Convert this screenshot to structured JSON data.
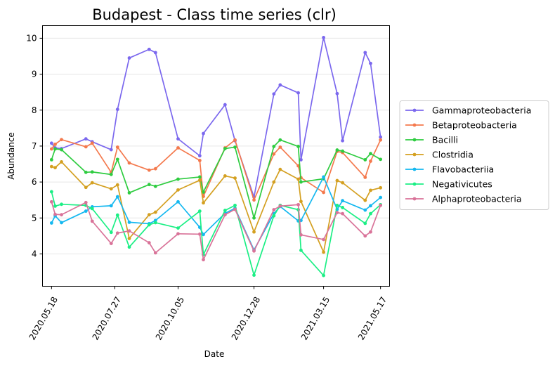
{
  "chart_data": {
    "type": "line",
    "title": "Budapest - Class time series (clr)",
    "xlabel": "Date",
    "ylabel": "Abundance",
    "ylim": [
      3.1,
      10.35
    ],
    "xlim": [
      "2020-05-08",
      "2021-05-27"
    ],
    "grid": "horizontal",
    "legend_position": "right",
    "x_ticks": [
      "2020.05.18",
      "2020.07.27",
      "2020.10.05",
      "2020.12.28",
      "2021.03.15",
      "2021.05.17"
    ],
    "y_ticks": [
      4,
      5,
      6,
      7,
      8,
      9,
      10
    ],
    "x": [
      "2020-05-18",
      "2020-05-22",
      "2020-05-29",
      "2020-06-25",
      "2020-07-02",
      "2020-07-23",
      "2020-07-30",
      "2020-08-12",
      "2020-09-03",
      "2020-09-10",
      "2020-10-05",
      "2020-10-29",
      "2020-11-02",
      "2020-11-26",
      "2020-12-07",
      "2020-12-28",
      "2021-01-19",
      "2021-01-26",
      "2021-02-15",
      "2021-02-18",
      "2021-03-15",
      "2021-03-30",
      "2021-04-05",
      "2021-04-30",
      "2021-05-06",
      "2021-05-17"
    ],
    "series": [
      {
        "name": "Gammaproteobacteria",
        "color": "#7b68ee",
        "values": [
          7.08,
          6.95,
          6.93,
          7.2,
          7.12,
          6.9,
          8.02,
          9.45,
          9.69,
          9.6,
          7.2,
          6.73,
          7.35,
          8.15,
          7.15,
          5.58,
          8.45,
          8.7,
          8.48,
          6.62,
          10.02,
          8.46,
          7.15,
          9.6,
          9.3,
          7.25
        ]
      },
      {
        "name": "Betaproteobacteria",
        "color": "#f4794d",
        "values": [
          6.92,
          7.05,
          7.18,
          6.98,
          7.08,
          6.27,
          6.97,
          6.53,
          6.33,
          6.37,
          6.95,
          6.6,
          5.6,
          6.95,
          7.17,
          5.5,
          6.78,
          6.97,
          6.45,
          6.12,
          5.71,
          6.85,
          6.82,
          6.13,
          6.58,
          7.17
        ]
      },
      {
        "name": "Bacilli",
        "color": "#2ecc40",
        "values": [
          6.62,
          6.92,
          6.9,
          6.27,
          6.28,
          6.21,
          6.63,
          5.7,
          5.93,
          5.88,
          6.08,
          6.14,
          5.72,
          6.93,
          6.97,
          5.0,
          6.99,
          7.17,
          6.99,
          6.0,
          6.09,
          6.89,
          6.86,
          6.62,
          6.79,
          6.63
        ]
      },
      {
        "name": "Clostridia",
        "color": "#d4a021",
        "values": [
          6.43,
          6.4,
          6.56,
          5.85,
          5.98,
          5.81,
          5.92,
          4.43,
          5.09,
          5.16,
          5.78,
          6.05,
          5.42,
          6.17,
          6.11,
          4.61,
          6.0,
          6.35,
          6.08,
          5.46,
          4.05,
          6.04,
          5.98,
          5.49,
          5.77,
          5.84
        ]
      },
      {
        "name": "Flavobacteriia",
        "color": "#14b8f0",
        "values": [
          4.86,
          5.06,
          4.87,
          5.19,
          5.31,
          5.34,
          5.59,
          4.88,
          4.84,
          4.93,
          5.45,
          4.74,
          4.54,
          5.13,
          5.27,
          4.11,
          5.12,
          5.32,
          4.92,
          4.93,
          6.14,
          5.24,
          5.48,
          5.22,
          5.34,
          5.57
        ]
      },
      {
        "name": "Negativicutes",
        "color": "#1bef85",
        "values": [
          5.73,
          5.33,
          5.38,
          5.35,
          5.26,
          4.6,
          5.08,
          4.19,
          4.81,
          4.87,
          4.72,
          5.19,
          3.98,
          5.21,
          5.35,
          3.41,
          5.06,
          5.35,
          5.23,
          4.1,
          3.4,
          5.35,
          5.29,
          4.85,
          5.12,
          5.37
        ]
      },
      {
        "name": "Alphaproteobacteria",
        "color": "#d97399",
        "values": [
          5.45,
          5.1,
          5.09,
          5.43,
          4.91,
          4.29,
          4.58,
          4.64,
          4.31,
          4.03,
          4.56,
          4.55,
          3.84,
          5.09,
          5.24,
          4.08,
          5.23,
          5.33,
          5.37,
          4.53,
          4.4,
          5.15,
          5.12,
          4.5,
          4.61,
          5.35
        ]
      }
    ]
  }
}
